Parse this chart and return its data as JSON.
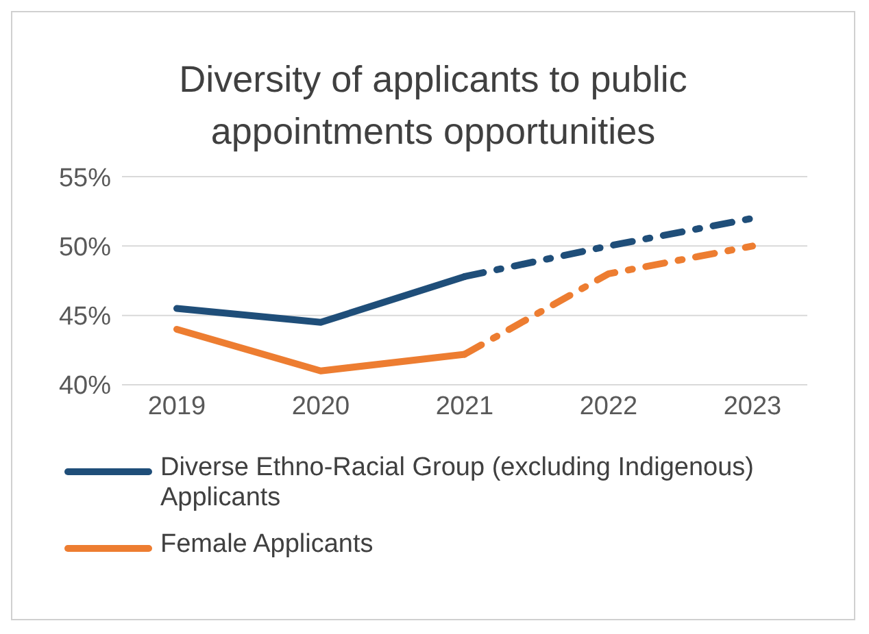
{
  "chart_data": {
    "type": "line",
    "title": "Diversity of applicants to public appointments opportunities",
    "categories": [
      "2019",
      "2020",
      "2021",
      "2022",
      "2023"
    ],
    "series": [
      {
        "name": "Diverse Ethno-Racial Group (excluding Indigenous) Applicants",
        "color": "#1f4e79",
        "values": [
          45.5,
          44.5,
          47.8,
          null,
          null
        ],
        "line_style": "solid"
      },
      {
        "name": "Female Applicants",
        "color": "#ed7d31",
        "values": [
          44,
          41,
          42.2,
          null,
          null
        ],
        "line_style": "solid"
      },
      {
        "color": "#1f4e79",
        "values": [
          null,
          null,
          47.8,
          50,
          52
        ],
        "line_style": "dashed"
      },
      {
        "color": "#ed7d31",
        "values": [
          null,
          null,
          42.2,
          48,
          50
        ],
        "line_style": "dashed"
      }
    ],
    "ylim": [
      40,
      55
    ],
    "yticks": [
      {
        "value": 40,
        "label": "40%"
      },
      {
        "value": 45,
        "label": "45%"
      },
      {
        "value": 50,
        "label": "50%"
      },
      {
        "value": 55,
        "label": "55%"
      }
    ],
    "grid": "y",
    "legend": "bottom",
    "marker": "none"
  }
}
